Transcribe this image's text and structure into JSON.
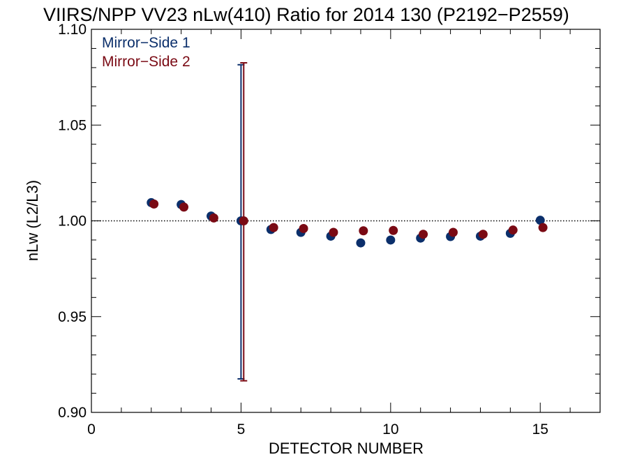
{
  "chart_data": {
    "type": "scatter",
    "title": "VIIRS/NPP VV23 nLw(410) Ratio for 2014 130 (P2192−P2559)",
    "xlabel": "DETECTOR NUMBER",
    "ylabel": "nLw (L2/L3)",
    "xlim": [
      0,
      17
    ],
    "ylim": [
      0.9,
      1.1
    ],
    "x_ticks": [
      0,
      5,
      10,
      15
    ],
    "x_tick_labels": [
      "0",
      "5",
      "10",
      "15"
    ],
    "y_ticks": [
      0.9,
      0.95,
      1.0,
      1.05,
      1.1
    ],
    "y_tick_labels": [
      "0.90",
      "0.95",
      "1.00",
      "1.05",
      "1.10"
    ],
    "reference_line": 1.0,
    "legend_position": "top-left",
    "grid": false,
    "series": [
      {
        "name": "Mirror−Side 1",
        "color": "#0b2f6b",
        "x": [
          2,
          3,
          4,
          5,
          6,
          7,
          8,
          9,
          10,
          11,
          12,
          13,
          14,
          15
        ],
        "y": [
          1.0095,
          1.0085,
          1.0025,
          1.0,
          0.9955,
          0.994,
          0.992,
          0.9885,
          0.99,
          0.991,
          0.9918,
          0.992,
          0.9935,
          1.0003
        ],
        "error_bars": [
          {
            "x": 5,
            "low": 0.9175,
            "high": 1.0815
          }
        ]
      },
      {
        "name": "Mirror−Side 2",
        "color": "#7a0a14",
        "x": [
          2,
          3,
          4,
          5,
          6,
          7,
          8,
          9,
          10,
          11,
          12,
          13,
          14,
          15
        ],
        "y": [
          1.0088,
          1.0072,
          1.0015,
          1.0,
          0.9965,
          0.996,
          0.994,
          0.9948,
          0.995,
          0.993,
          0.994,
          0.993,
          0.9952,
          0.9965
        ],
        "error_bars": [
          {
            "x": 5,
            "low": 0.9165,
            "high": 1.0825
          }
        ]
      }
    ]
  }
}
